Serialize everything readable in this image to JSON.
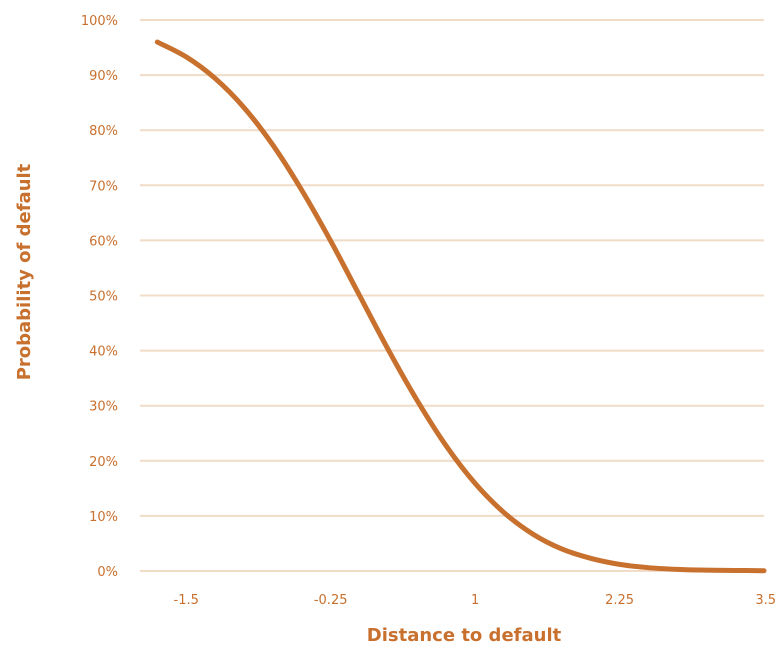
{
  "chart_data": {
    "type": "line",
    "title": "",
    "xlabel": "Distance to default",
    "ylabel": "Probability of default",
    "xlim": [
      -1.9,
      3.5
    ],
    "ylim": [
      0,
      100
    ],
    "x_ticks": [
      -1.5,
      -0.25,
      1,
      2.25,
      3.5
    ],
    "x_tick_labels": [
      "-1.5",
      "-0.25",
      "1",
      "2.25",
      "3.5"
    ],
    "y_ticks": [
      0,
      10,
      20,
      30,
      40,
      50,
      60,
      70,
      80,
      90,
      100
    ],
    "y_tick_labels": [
      "0%",
      "10%",
      "20%",
      "30%",
      "40%",
      "50%",
      "60%",
      "70%",
      "80%",
      "90%",
      "100%"
    ],
    "grid": true,
    "legend": "none",
    "colors": {
      "line": "#c8702e",
      "text": "#c8702e",
      "grid": "#f1dcc8"
    },
    "series": [
      {
        "x": [
          -1.75,
          -1.5,
          -1.25,
          -1.0,
          -0.75,
          -0.5,
          -0.25,
          0.0,
          0.25,
          0.5,
          0.75,
          1.0,
          1.25,
          1.5,
          1.75,
          2.0,
          2.25,
          2.5,
          2.75,
          3.0,
          3.25,
          3.5
        ],
        "values": [
          96.0,
          93.3,
          89.4,
          84.1,
          77.3,
          69.1,
          59.9,
          50.0,
          40.1,
          30.9,
          22.7,
          15.9,
          10.6,
          6.7,
          4.0,
          2.3,
          1.2,
          0.6,
          0.3,
          0.15,
          0.1,
          0.05
        ]
      }
    ]
  }
}
